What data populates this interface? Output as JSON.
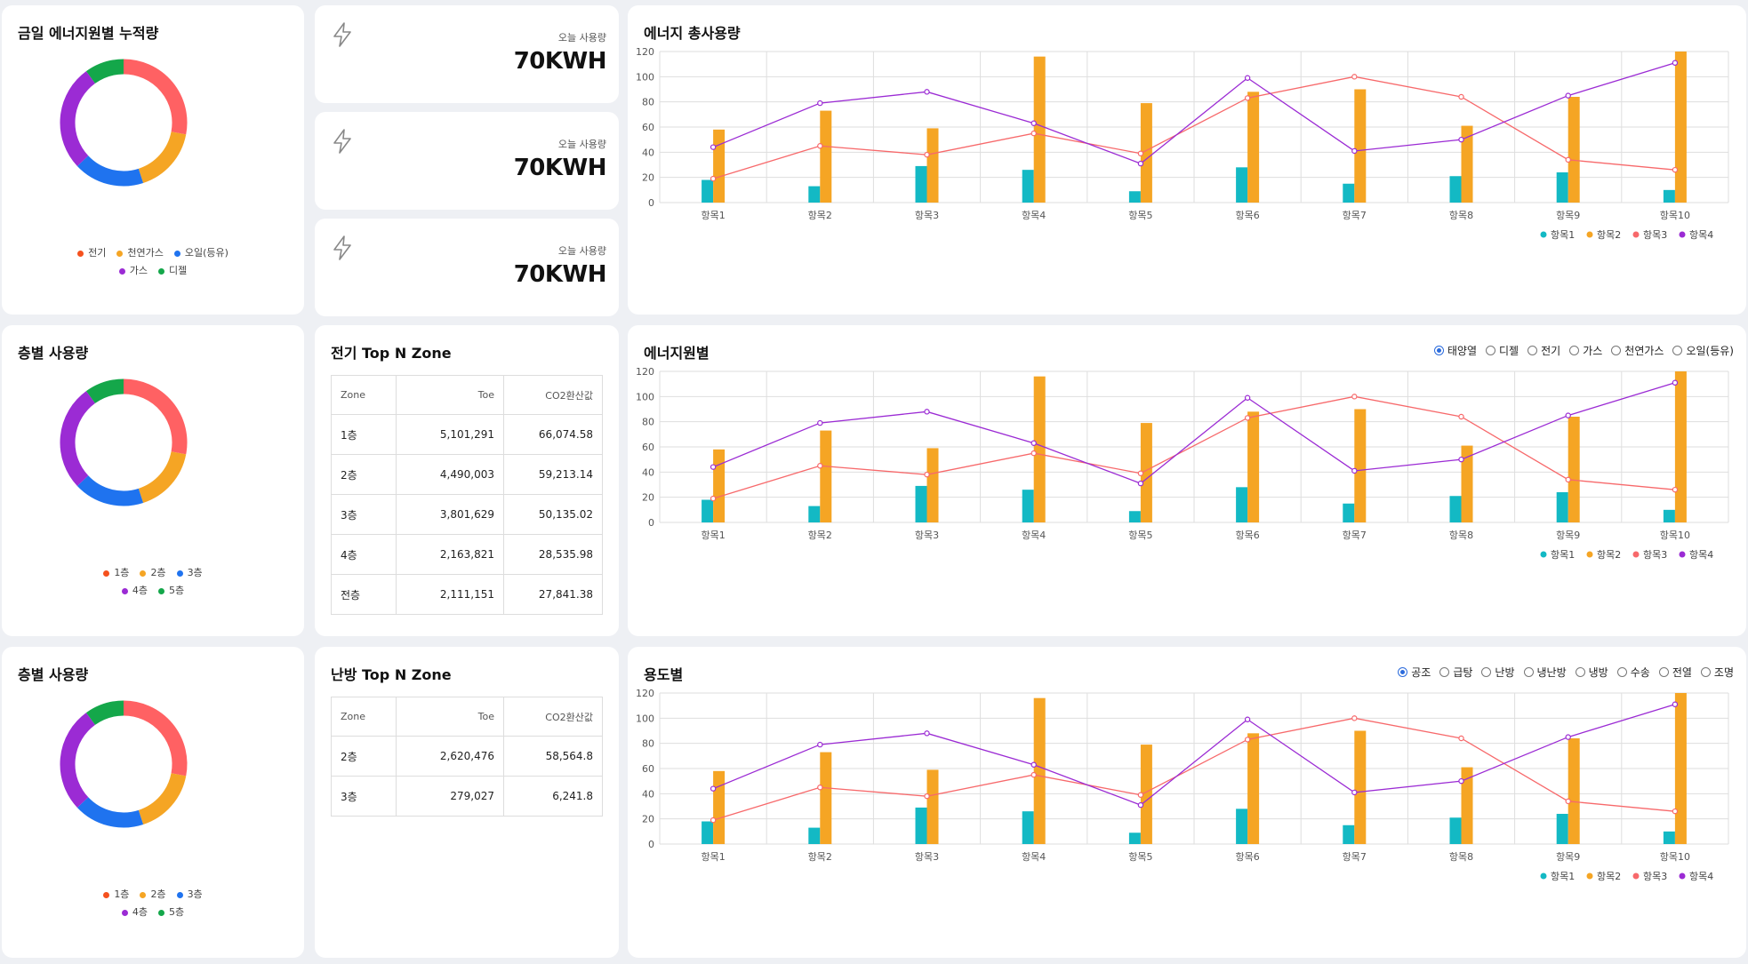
{
  "colors": {
    "energy": [
      "#f5511e",
      "#f5a524",
      "#1f73ef",
      "#9b2bd4",
      "#14a74a"
    ],
    "donut": [
      "#ff6163",
      "#f5a524",
      "#1f73ef",
      "#9b2bd4",
      "#14a74a"
    ],
    "series": [
      "#13b9c4",
      "#f5a524",
      "#f7696b",
      "#9b2bd4"
    ]
  },
  "icons": {
    "stat": "lightning-icon"
  },
  "donuts": [
    {
      "title": "금일 에너지원별 누적량",
      "legend": [
        "전기",
        "천연가스",
        "오일(등유)",
        "가스",
        "디젤"
      ],
      "values": [
        28,
        17,
        18,
        27,
        10
      ]
    },
    {
      "title": "층별 사용량",
      "legend": [
        "1층",
        "2층",
        "3층",
        "4층",
        "5층"
      ],
      "values": [
        28,
        17,
        18,
        27,
        10
      ]
    },
    {
      "title": "층별 사용량",
      "legend": [
        "1층",
        "2층",
        "3층",
        "4층",
        "5층"
      ],
      "values": [
        28,
        17,
        18,
        27,
        10
      ]
    }
  ],
  "stats": [
    {
      "label": "오늘 사용량",
      "value": "70KWH"
    },
    {
      "label": "오늘 사용량",
      "value": "70KWH"
    },
    {
      "label": "오늘 사용량",
      "value": "70KWH"
    }
  ],
  "zones": [
    {
      "title": "전기 Top N Zone",
      "headers": [
        "Zone",
        "Toe",
        "CO2환산값"
      ],
      "rows": [
        [
          "1층",
          "5,101,291",
          "66,074.58"
        ],
        [
          "2층",
          "4,490,003",
          "59,213.14"
        ],
        [
          "3층",
          "3,801,629",
          "50,135.02"
        ],
        [
          "4층",
          "2,163,821",
          "28,535.98"
        ],
        [
          "전층",
          "2,111,151",
          "27,841.38"
        ]
      ]
    },
    {
      "title": "난방 Top N Zone",
      "headers": [
        "Zone",
        "Toe",
        "CO2환산값"
      ],
      "rows": [
        [
          "2층",
          "2,620,476",
          "58,564.8"
        ],
        [
          "3층",
          "279,027",
          "6,241.8"
        ]
      ]
    }
  ],
  "charts": [
    {
      "title": "에너지 총사용량",
      "radios": [],
      "selected": -1
    },
    {
      "title": "에너지원별",
      "radios": [
        "태양열",
        "디젤",
        "전기",
        "가스",
        "천연가스",
        "오일(등유)"
      ],
      "selected": 0
    },
    {
      "title": "용도별",
      "radios": [
        "공조",
        "급탕",
        "난방",
        "냉난방",
        "냉방",
        "수송",
        "전열",
        "조명"
      ],
      "selected": 0
    }
  ],
  "chart_data": {
    "type": "bar",
    "categories": [
      "항목1",
      "항목2",
      "항목3",
      "항목4",
      "항목5",
      "항목6",
      "항목7",
      "항목8",
      "항목9",
      "항목10"
    ],
    "ylim": [
      0,
      120
    ],
    "yticks": [
      0,
      20,
      40,
      60,
      80,
      100,
      120
    ],
    "series": [
      {
        "name": "항목1",
        "type": "bar",
        "values": [
          18,
          13,
          29,
          26,
          9,
          28,
          15,
          21,
          24,
          10
        ]
      },
      {
        "name": "항목2",
        "type": "bar",
        "values": [
          58,
          73,
          59,
          116,
          79,
          88,
          90,
          61,
          84,
          120
        ]
      },
      {
        "name": "항목3",
        "type": "line",
        "values": [
          19,
          45,
          38,
          55,
          39,
          83,
          100,
          84,
          34,
          26
        ]
      },
      {
        "name": "항목4",
        "type": "line",
        "values": [
          44,
          79,
          88,
          63,
          31,
          99,
          41,
          50,
          85,
          111
        ]
      }
    ]
  }
}
